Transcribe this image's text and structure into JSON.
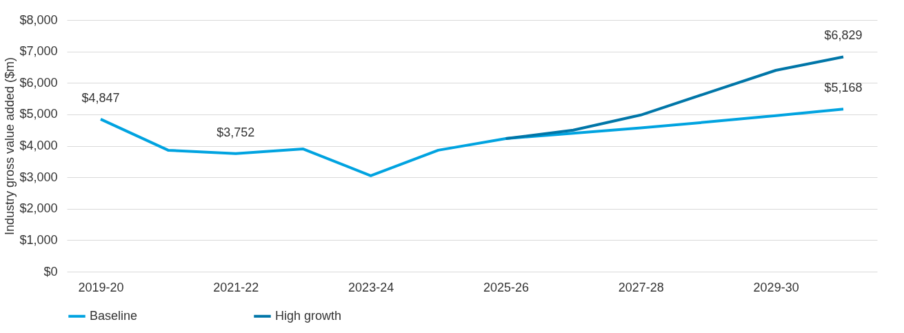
{
  "chart_data": {
    "type": "line",
    "ylabel": "Industry gross value added ($m)",
    "categories": [
      "2019-20",
      null,
      "2021-22",
      null,
      "2023-24",
      null,
      "2025-26",
      null,
      "2027-28",
      null,
      "2029-30",
      null
    ],
    "series": [
      {
        "name": "Baseline",
        "color": "#00a3e0",
        "values": [
          4847,
          3860,
          3752,
          3900,
          3050,
          3860,
          4230,
          4400,
          4570,
          4760,
          4960,
          5168
        ],
        "value_labels": [
          "$4,847",
          null,
          "$3,752",
          null,
          null,
          null,
          null,
          null,
          null,
          null,
          null,
          "$5,168"
        ]
      },
      {
        "name": "High growth",
        "color": "#0076a8",
        "values": [
          null,
          null,
          null,
          null,
          null,
          null,
          4230,
          4500,
          4980,
          5690,
          6400,
          6829
        ],
        "value_labels": [
          null,
          null,
          null,
          null,
          null,
          null,
          null,
          null,
          null,
          null,
          null,
          "$6,829"
        ]
      }
    ],
    "ylim": [
      0,
      8000
    ],
    "yticks": [
      {
        "value": 0,
        "label": "$0"
      },
      {
        "value": 1000,
        "label": "$1,000"
      },
      {
        "value": 2000,
        "label": "$2,000"
      },
      {
        "value": 3000,
        "label": "$3,000"
      },
      {
        "value": 4000,
        "label": "$4,000"
      },
      {
        "value": 5000,
        "label": "$5,000"
      },
      {
        "value": 6000,
        "label": "$6,000"
      },
      {
        "value": 7000,
        "label": "$7,000"
      },
      {
        "value": 8000,
        "label": "$8,000"
      }
    ],
    "grid": "y",
    "legend": "bottom",
    "marker": "none",
    "line_style": "solid"
  }
}
